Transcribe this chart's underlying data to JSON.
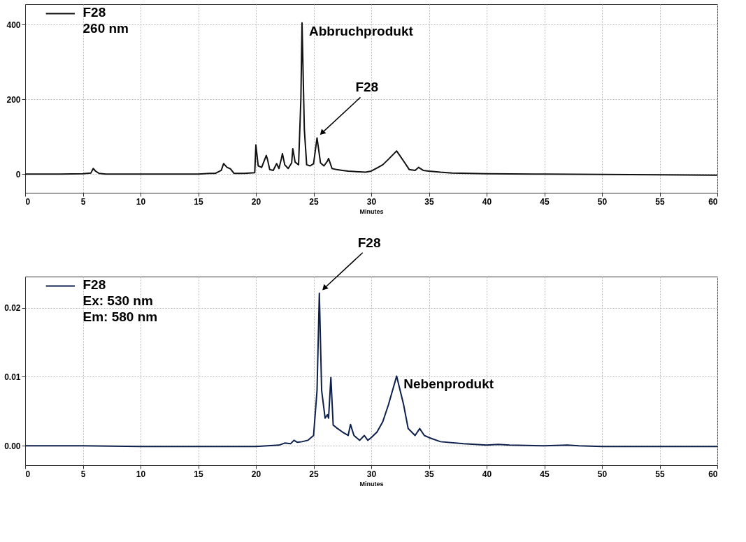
{
  "chart_data": [
    {
      "type": "line",
      "xlabel": "Minutes",
      "x": [
        0,
        3,
        5,
        5.7,
        5.9,
        6.1,
        6.4,
        7,
        10,
        15,
        16,
        16.5,
        17,
        17.2,
        17.5,
        17.8,
        18.1,
        19,
        19.9,
        20,
        20.2,
        20.5,
        20.9,
        21,
        21.2,
        21.5,
        21.8,
        22,
        22.2,
        22.3,
        22.5,
        22.8,
        23.1,
        23.2,
        23.4,
        23.7,
        23.9,
        24,
        24.2,
        24.4,
        24.7,
        25,
        25.3,
        25.6,
        25.9,
        26.2,
        26.3,
        26.6,
        27,
        27.5,
        28,
        29,
        29.5,
        30,
        30.6,
        31,
        31.5,
        32.2,
        32.8,
        33.3,
        33.8,
        34.1,
        34.5,
        35,
        36,
        37,
        40,
        45,
        50,
        55,
        60
      ],
      "series": [
        {
          "name": "F28\n260 nm",
          "color": "#111111",
          "values": [
            0,
            0,
            1,
            3,
            15,
            8,
            2,
            0,
            0,
            0,
            2,
            2,
            10,
            28,
            18,
            14,
            2,
            2,
            4,
            78,
            22,
            18,
            50,
            40,
            12,
            10,
            28,
            15,
            40,
            55,
            25,
            15,
            30,
            68,
            32,
            25,
            200,
            405,
            120,
            25,
            22,
            28,
            97,
            30,
            22,
            35,
            42,
            15,
            12,
            10,
            8,
            6,
            5,
            8,
            18,
            25,
            40,
            62,
            35,
            12,
            10,
            18,
            10,
            8,
            5,
            3,
            1,
            0,
            -1,
            -2,
            -3
          ]
        }
      ],
      "xlim": [
        0,
        60
      ],
      "ylim": [
        -50,
        455
      ],
      "xticks": [
        0,
        5,
        10,
        15,
        20,
        25,
        30,
        35,
        40,
        45,
        50,
        55,
        60
      ],
      "yticks": [
        0,
        200,
        400
      ],
      "grid": true,
      "legend": "top left",
      "annotations": [
        {
          "text": "Abbruchprodukt",
          "x": 24,
          "y": 405
        },
        {
          "text": "F28",
          "x": 25.3,
          "y": 97
        }
      ]
    },
    {
      "type": "line",
      "xlabel": "Minutes",
      "x": [
        0,
        5,
        10,
        15,
        20,
        22,
        22.5,
        23,
        23.3,
        23.6,
        24,
        24.5,
        25,
        25.3,
        25.5,
        25.7,
        26,
        26.2,
        26.3,
        26.5,
        26.7,
        27,
        27.5,
        28,
        28.2,
        28.5,
        29,
        29.4,
        29.7,
        30,
        30.5,
        31,
        31.5,
        32.2,
        32.8,
        33.2,
        33.8,
        34.2,
        34.6,
        35,
        36,
        38,
        40,
        41,
        42,
        45,
        47,
        48,
        50,
        55,
        60
      ],
      "series": [
        {
          "name": "F28\nEx: 530 nm\nEm: 580 nm",
          "color": "#0d1f4a",
          "values": [
            0,
            0,
            -0.0001,
            -0.0001,
            -0.0001,
            0.0001,
            0.0004,
            0.0003,
            0.0008,
            0.0005,
            0.0006,
            0.0008,
            0.0015,
            0.008,
            0.0221,
            0.008,
            0.004,
            0.0045,
            0.004,
            0.0099,
            0.003,
            0.0026,
            0.002,
            0.0015,
            0.0031,
            0.0015,
            0.0008,
            0.0015,
            0.0008,
            0.0012,
            0.002,
            0.0035,
            0.006,
            0.0101,
            0.006,
            0.0025,
            0.0015,
            0.0025,
            0.0015,
            0.0012,
            0.0006,
            0.0003,
            0.0001,
            0.0002,
            0.0001,
            0,
            0.0001,
            0,
            -0.0001,
            -0.0001,
            -0.0001
          ]
        }
      ],
      "xlim": [
        0,
        60
      ],
      "ylim": [
        -0.0028,
        0.0245
      ],
      "xticks": [
        0,
        5,
        10,
        15,
        20,
        25,
        30,
        35,
        40,
        45,
        50,
        55,
        60
      ],
      "yticks": [
        {
          "value": 0,
          "label": "0.00"
        },
        {
          "value": 0.01,
          "label": "0.01"
        },
        {
          "value": 0.02,
          "label": "0.02"
        }
      ],
      "grid": true,
      "legend": "top left",
      "annotations": [
        {
          "text": "Nebenprodukt",
          "x": 32.2,
          "y": 0.0101
        },
        {
          "text": "F28",
          "x": 25.5,
          "y": 0.0221
        }
      ]
    }
  ]
}
